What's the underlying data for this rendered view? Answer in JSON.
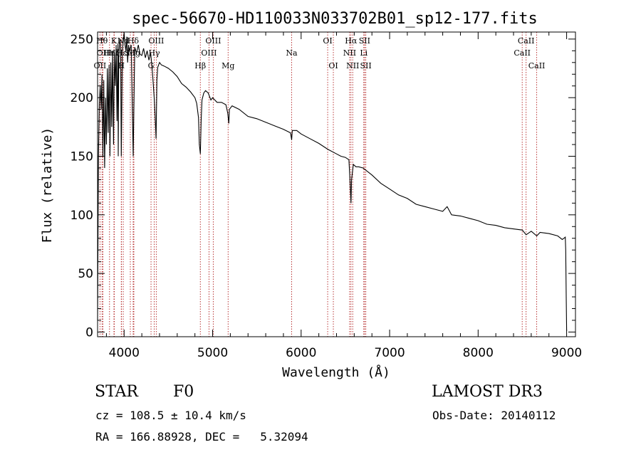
{
  "chart_data": {
    "type": "line",
    "title": "spec-56670-HD110033N033702B01_sp12-177.fits",
    "xlabel": "Wavelength (Å)",
    "ylabel": "Flux (relative)",
    "xlim": [
      3700,
      9100
    ],
    "ylim": [
      -4,
      256
    ],
    "x_ticks": [
      4000,
      5000,
      6000,
      7000,
      8000,
      9000
    ],
    "y_ticks": [
      0,
      50,
      100,
      150,
      200,
      250
    ],
    "grid": false,
    "series": [
      {
        "name": "spectrum",
        "x": [
          3700,
          3710,
          3720,
          3730,
          3740,
          3750,
          3760,
          3770,
          3780,
          3790,
          3800,
          3810,
          3820,
          3830,
          3840,
          3850,
          3860,
          3870,
          3880,
          3890,
          3900,
          3910,
          3920,
          3930,
          3933,
          3940,
          3950,
          3960,
          3968,
          3980,
          3990,
          4000,
          4010,
          4020,
          4030,
          4040,
          4050,
          4060,
          4080,
          4102,
          4120,
          4140,
          4160,
          4180,
          4200,
          4220,
          4240,
          4260,
          4280,
          4300,
          4320,
          4340,
          4350,
          4361,
          4370,
          4380,
          4400,
          4420,
          4450,
          4500,
          4550,
          4600,
          4650,
          4700,
          4750,
          4800,
          4820,
          4840,
          4850,
          4861,
          4870,
          4880,
          4900,
          4920,
          4950,
          4980,
          5000,
          5050,
          5100,
          5150,
          5170,
          5183,
          5190,
          5220,
          5300,
          5400,
          5500,
          5600,
          5700,
          5800,
          5880,
          5893,
          5900,
          5950,
          6000,
          6100,
          6200,
          6300,
          6400,
          6450,
          6500,
          6540,
          6555,
          6563,
          6570,
          6590,
          6620,
          6650,
          6700,
          6750,
          6800,
          6900,
          7000,
          7100,
          7200,
          7300,
          7400,
          7500,
          7600,
          7650,
          7700,
          7800,
          7900,
          8000,
          8100,
          8200,
          8300,
          8400,
          8500,
          8542,
          8600,
          8662,
          8700,
          8800,
          8900,
          8950,
          8970,
          8985,
          8990,
          8995,
          9000
        ],
        "values": [
          10,
          150,
          195,
          210,
          190,
          220,
          150,
          215,
          140,
          200,
          160,
          225,
          170,
          228,
          150,
          230,
          175,
          240,
          160,
          238,
          210,
          245,
          180,
          246,
          150,
          235,
          250,
          245,
          150,
          240,
          248,
          255,
          245,
          240,
          252,
          230,
          245,
          240,
          245,
          150,
          243,
          238,
          245,
          237,
          236,
          242,
          234,
          240,
          232,
          238,
          222,
          200,
          185,
          165,
          215,
          226,
          230,
          228,
          227,
          225,
          222,
          218,
          212,
          209,
          205,
          200,
          195,
          183,
          160,
          152,
          180,
          198,
          204,
          206,
          204,
          198,
          200,
          196,
          196,
          194,
          187,
          178,
          190,
          193,
          190,
          184,
          182,
          179,
          176,
          173,
          170,
          164,
          172,
          172,
          169,
          165,
          161,
          156,
          152,
          150,
          149,
          147,
          125,
          110,
          130,
          143,
          141,
          141,
          140,
          137,
          134,
          127,
          122,
          117,
          114,
          109,
          107,
          105,
          103,
          107,
          100,
          99,
          97,
          95,
          92,
          91,
          89,
          88,
          87,
          83,
          86,
          82,
          85,
          84,
          82,
          79,
          80,
          81,
          70,
          30,
          1
        ]
      }
    ],
    "lines": [
      {
        "name": "OII",
        "wavelength": 3727,
        "row": 2
      },
      {
        "name": "Hθ",
        "wavelength": 3750,
        "row": 0
      },
      {
        "name": "OII",
        "wavelength": 3760,
        "row": 1
      },
      {
        "name": "Hη",
        "wavelength": 3835,
        "row": 1
      },
      {
        "name": "K",
        "wavelength": 3885,
        "row": 0
      },
      {
        "name": "Hζ",
        "wavelength": 3889,
        "row": 1
      },
      {
        "name": "H",
        "wavelength": 3968,
        "row": 2
      },
      {
        "name": "Hε",
        "wavelength": 3970,
        "row": 1
      },
      {
        "name": "Nd",
        "wavelength": 3990,
        "row": 0
      },
      {
        "name": "SII",
        "wavelength": 4070,
        "row": 1
      },
      {
        "name": "Hδ",
        "wavelength": 4102,
        "row": 0
      },
      {
        "name": "Mg",
        "wavelength": 4110,
        "row": 1
      },
      {
        "name": "Hγ",
        "wavelength": 4340,
        "row": 1
      },
      {
        "name": "G",
        "wavelength": 4304,
        "row": 2
      },
      {
        "name": "OIII",
        "wavelength": 4363,
        "row": 0
      },
      {
        "name": "Hβ",
        "wavelength": 4861,
        "row": 2
      },
      {
        "name": "OIII",
        "wavelength": 4959,
        "row": 1
      },
      {
        "name": "OIII",
        "wavelength": 5007,
        "row": 0
      },
      {
        "name": "Mg",
        "wavelength": 5175,
        "row": 2
      },
      {
        "name": "Na",
        "wavelength": 5893,
        "row": 1
      },
      {
        "name": "OI",
        "wavelength": 6300,
        "row": 0
      },
      {
        "name": "OI",
        "wavelength": 6364,
        "row": 2
      },
      {
        "name": "NII",
        "wavelength": 6548,
        "row": 1
      },
      {
        "name": "Hα",
        "wavelength": 6563,
        "row": 0
      },
      {
        "name": "NII",
        "wavelength": 6583,
        "row": 2
      },
      {
        "name": "Li",
        "wavelength": 6708,
        "row": 1
      },
      {
        "name": "SII",
        "wavelength": 6717,
        "row": 0
      },
      {
        "name": "SII",
        "wavelength": 6731,
        "row": 2
      },
      {
        "name": "CaII",
        "wavelength": 8498,
        "row": 1
      },
      {
        "name": "CaII",
        "wavelength": 8542,
        "row": 0
      },
      {
        "name": "CaII",
        "wavelength": 8662,
        "row": 2
      }
    ]
  },
  "info": {
    "object_class": "STAR",
    "subclass": "F0",
    "survey": "LAMOST DR3",
    "redshift": "cz = 108.5 ± 10.4 km/s",
    "obs_date": "Obs-Date: 20140112",
    "coords": "RA = 166.88928, DEC =   5.32094"
  }
}
